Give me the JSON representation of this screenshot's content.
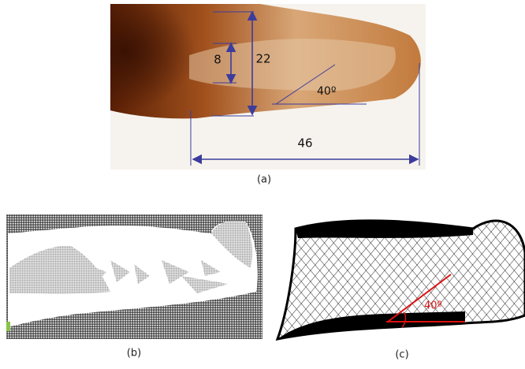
{
  "panels": [
    {
      "label": "(a)",
      "dimensions": [
        8,
        22,
        46
      ],
      "angle": "40º"
    },
    {
      "label": "(b)"
    },
    {
      "label": "(c)",
      "angle": "40º"
    }
  ]
}
